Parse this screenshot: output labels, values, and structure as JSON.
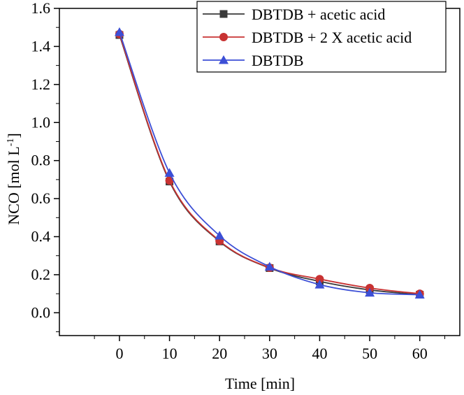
{
  "chart_data": {
    "type": "line",
    "title": "",
    "xlabel": "Time [min]",
    "ylabel": "NCO [mol L",
    "ylabel_superscript": "-1",
    "ylabel_suffix": "]",
    "xlim": [
      -12,
      68
    ],
    "ylim": [
      -0.12,
      1.6
    ],
    "xticks": [
      0,
      10,
      20,
      30,
      40,
      50,
      60
    ],
    "yticks": [
      0.0,
      0.2,
      0.4,
      0.6,
      0.8,
      1.0,
      1.2,
      1.4,
      1.6
    ],
    "grid": false,
    "legend_position": "top-right",
    "x": [
      0,
      10,
      20,
      30,
      40,
      50,
      60
    ],
    "series": [
      {
        "name": "DBTDB + acetic acid",
        "color": "#3a3a3a",
        "marker": "square",
        "values": [
          1.46,
          0.69,
          0.375,
          0.235,
          0.165,
          0.12,
          0.095
        ]
      },
      {
        "name": "DBTDB + 2 X acetic acid",
        "color": "#c83232",
        "marker": "circle",
        "values": [
          1.465,
          0.695,
          0.378,
          0.237,
          0.177,
          0.13,
          0.1
        ]
      },
      {
        "name": "DBTDB",
        "color": "#3c4fd6",
        "marker": "triangle",
        "values": [
          1.475,
          0.735,
          0.405,
          0.242,
          0.148,
          0.105,
          0.095
        ]
      }
    ]
  }
}
